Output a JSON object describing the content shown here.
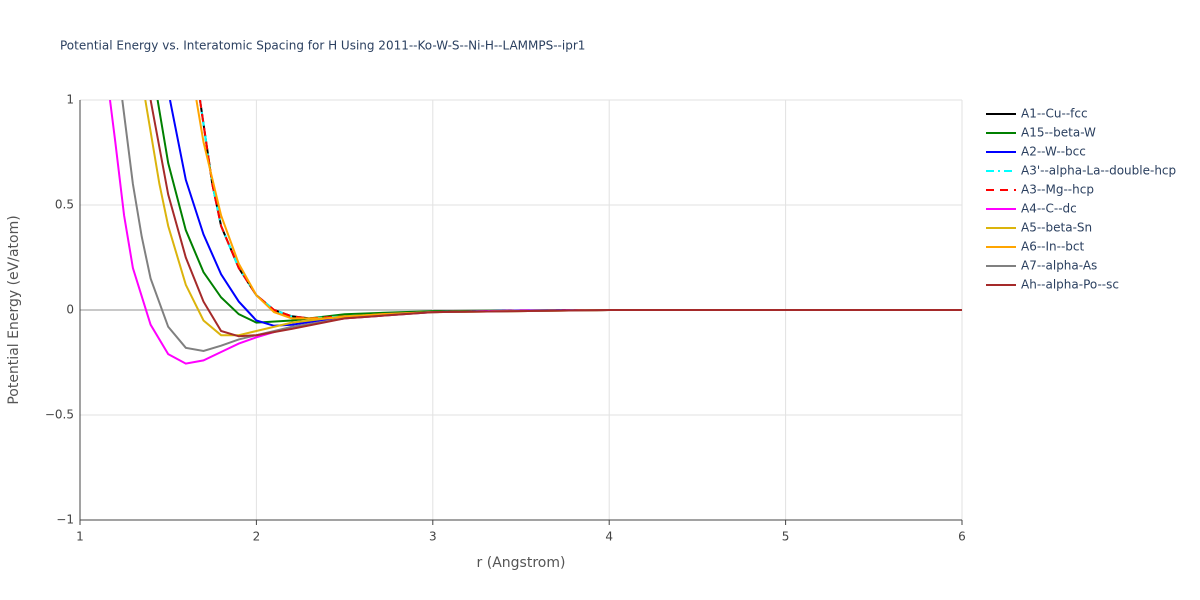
{
  "chart_data": {
    "type": "line",
    "title": "Potential Energy vs. Interatomic Spacing for H Using 2011--Ko-W-S--Ni-H--LAMMPS--ipr1",
    "x_label": "r (Angstrom)",
    "y_label": "Potential Energy (eV/atom)",
    "xlim": [
      1,
      6
    ],
    "ylim": [
      -1,
      1
    ],
    "xticks": [
      1,
      2,
      3,
      4,
      5,
      6
    ],
    "yticks": [
      {
        "value": -1,
        "label": "−1"
      },
      {
        "value": -0.5,
        "label": "−0.5"
      },
      0,
      0.5,
      1
    ],
    "grid": true,
    "series": [
      {
        "name": "A1--Cu--fcc",
        "color": "#000000",
        "dash": "solid",
        "x": [
          1.68,
          1.75,
          1.8,
          1.9,
          2.0,
          2.1,
          2.2,
          2.3,
          2.5,
          3.0,
          3.5,
          4,
          5,
          6
        ],
        "values": [
          1,
          0.6,
          0.4,
          0.2,
          0.07,
          0.0,
          -0.03,
          -0.04,
          -0.03,
          -0.01,
          -0.003,
          0,
          0,
          0
        ]
      },
      {
        "name": "A15--beta-W",
        "color": "#008000",
        "dash": "solid",
        "x": [
          1.44,
          1.5,
          1.6,
          1.7,
          1.8,
          1.9,
          2.0,
          2.2,
          2.5,
          3.0,
          4,
          6
        ],
        "values": [
          1,
          0.7,
          0.38,
          0.18,
          0.06,
          -0.02,
          -0.06,
          -0.05,
          -0.02,
          -0.005,
          0,
          0
        ]
      },
      {
        "name": "A2--W--bcc",
        "color": "#0000ff",
        "dash": "solid",
        "x": [
          1.51,
          1.6,
          1.7,
          1.8,
          1.9,
          2.0,
          2.1,
          2.2,
          2.4,
          2.7,
          3.0,
          3.5,
          4,
          6
        ],
        "values": [
          1,
          0.62,
          0.36,
          0.17,
          0.04,
          -0.05,
          -0.075,
          -0.07,
          -0.045,
          -0.02,
          -0.01,
          -0.002,
          0,
          0
        ]
      },
      {
        "name": "A3'--alpha-La--double-hcp",
        "color": "#00ffff",
        "dash": "dashdot",
        "x": [
          1.68,
          1.75,
          1.8,
          1.9,
          2.0,
          2.1,
          2.2,
          2.3,
          2.5,
          3.0,
          3.5,
          4,
          5,
          6
        ],
        "values": [
          1,
          0.6,
          0.4,
          0.2,
          0.07,
          0.0,
          -0.03,
          -0.04,
          -0.03,
          -0.01,
          -0.003,
          0,
          0,
          0
        ]
      },
      {
        "name": "A3--Mg--hcp",
        "color": "#ff0000",
        "dash": "dash",
        "x": [
          1.68,
          1.75,
          1.8,
          1.9,
          2.0,
          2.1,
          2.2,
          2.3,
          2.5,
          3.0,
          3.5,
          4,
          5,
          6
        ],
        "values": [
          1,
          0.6,
          0.4,
          0.2,
          0.07,
          0.0,
          -0.03,
          -0.04,
          -0.03,
          -0.01,
          -0.003,
          0,
          0,
          0
        ]
      },
      {
        "name": "A4--C--dc",
        "color": "#ff00ff",
        "dash": "solid",
        "x": [
          1.17,
          1.2,
          1.25,
          1.3,
          1.4,
          1.5,
          1.6,
          1.7,
          1.8,
          1.9,
          2.0,
          2.2,
          2.5,
          3.0,
          3.5,
          4,
          6
        ],
        "values": [
          1,
          0.8,
          0.45,
          0.2,
          -0.07,
          -0.21,
          -0.255,
          -0.24,
          -0.2,
          -0.16,
          -0.13,
          -0.08,
          -0.04,
          -0.01,
          -0.003,
          0,
          0
        ]
      },
      {
        "name": "A5--beta-Sn",
        "color": "#dbb40c",
        "dash": "solid",
        "x": [
          1.37,
          1.45,
          1.5,
          1.6,
          1.7,
          1.8,
          1.9,
          2.0,
          2.2,
          2.5,
          3,
          4,
          6
        ],
        "values": [
          1,
          0.6,
          0.4,
          0.12,
          -0.05,
          -0.12,
          -0.12,
          -0.1,
          -0.06,
          -0.03,
          -0.01,
          0,
          0
        ]
      },
      {
        "name": "A6--In--bct",
        "color": "#ffa500",
        "dash": "solid",
        "x": [
          1.66,
          1.7,
          1.8,
          1.9,
          2.0,
          2.1,
          2.2,
          2.4,
          2.7,
          3,
          4,
          6
        ],
        "values": [
          1,
          0.8,
          0.45,
          0.22,
          0.07,
          -0.01,
          -0.04,
          -0.04,
          -0.02,
          -0.01,
          0,
          0
        ]
      },
      {
        "name": "A7--alpha-As",
        "color": "#808080",
        "dash": "solid",
        "x": [
          1.24,
          1.3,
          1.35,
          1.4,
          1.5,
          1.6,
          1.7,
          1.8,
          1.9,
          2.0,
          2.2,
          2.5,
          3,
          4,
          6
        ],
        "values": [
          1,
          0.6,
          0.35,
          0.15,
          -0.08,
          -0.18,
          -0.195,
          -0.17,
          -0.14,
          -0.12,
          -0.08,
          -0.04,
          -0.01,
          0,
          0
        ]
      },
      {
        "name": "Ah--alpha-Po--sc",
        "color": "#a52a2a",
        "dash": "solid",
        "x": [
          1.4,
          1.5,
          1.6,
          1.7,
          1.8,
          1.9,
          2.0,
          2.2,
          2.5,
          3,
          4,
          6
        ],
        "values": [
          1,
          0.55,
          0.25,
          0.04,
          -0.1,
          -0.125,
          -0.12,
          -0.09,
          -0.04,
          -0.01,
          0,
          0
        ]
      }
    ]
  }
}
